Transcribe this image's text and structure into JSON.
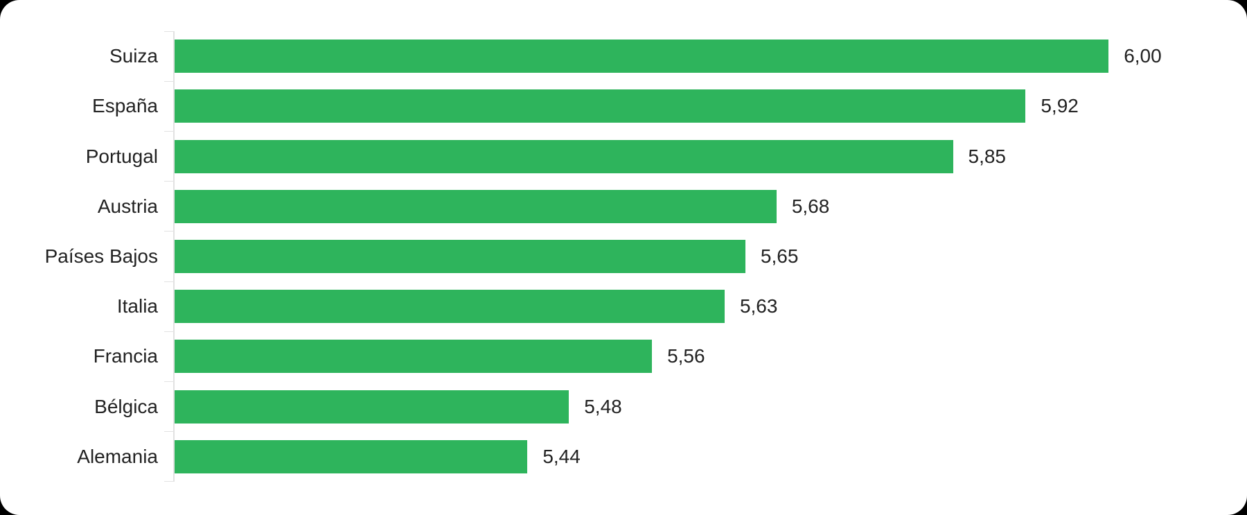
{
  "chart_data": {
    "type": "bar",
    "orientation": "horizontal",
    "title": "",
    "xlabel": "",
    "ylabel": "",
    "categories": [
      "Suiza",
      "España",
      "Portugal",
      "Austria",
      "Países Bajos",
      "Italia",
      "Francia",
      "Bélgica",
      "Alemania"
    ],
    "values": [
      6.0,
      5.92,
      5.85,
      5.68,
      5.65,
      5.63,
      5.56,
      5.48,
      5.44
    ],
    "value_labels": [
      "6,00",
      "5,92",
      "5,85",
      "5,68",
      "5,65",
      "5,63",
      "5,56",
      "5,48",
      "5,44"
    ],
    "xlim": [
      5.1,
      6.1
    ],
    "grid": false,
    "legend": false,
    "data_labels_position": "outside-end"
  },
  "colors": {
    "bar": "#2EB45C",
    "text": "#222222",
    "axis": "#E2E2E2",
    "card_background": "#FFFFFF",
    "canvas_background": "#000000"
  }
}
